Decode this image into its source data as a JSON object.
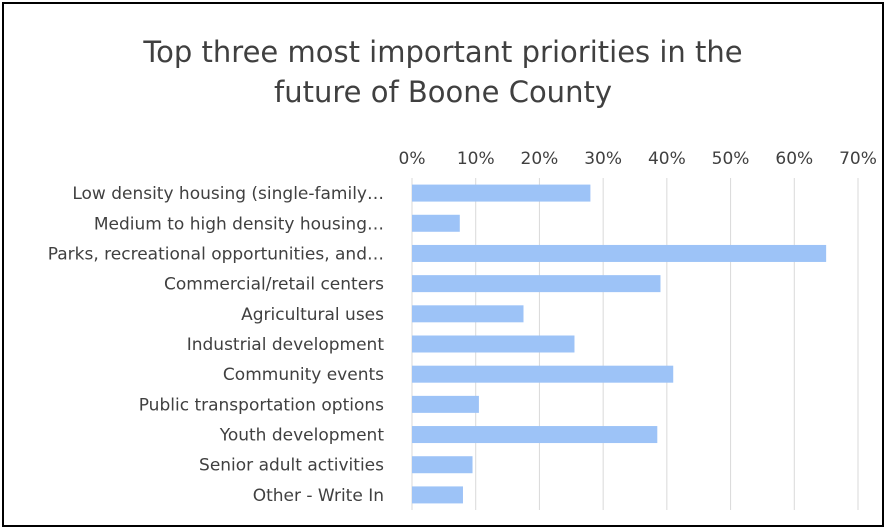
{
  "chart_data": {
    "type": "bar",
    "orientation": "horizontal",
    "title_lines": [
      "Top three most important priorities in the",
      "future of Boone County"
    ],
    "categories": [
      "Low density housing (single-family…",
      "Medium to high density housing…",
      "Parks, recreational opportunities, and…",
      "Commercial/retail centers",
      "Agricultural uses",
      "Industrial development",
      "Community events",
      "Public transportation options",
      "Youth development",
      "Senior adult activities",
      "Other - Write In"
    ],
    "values": [
      0.28,
      0.075,
      0.65,
      0.39,
      0.175,
      0.255,
      0.41,
      0.105,
      0.385,
      0.095,
      0.08
    ],
    "xlim": [
      0,
      0.7
    ],
    "xticks": [
      "0%",
      "10%",
      "20%",
      "30%",
      "40%",
      "50%",
      "60%",
      "70%"
    ],
    "x_axis_position": "top",
    "grid": true,
    "bar_color": "#9DC3F7",
    "grid_color": "#D9D9D9"
  }
}
